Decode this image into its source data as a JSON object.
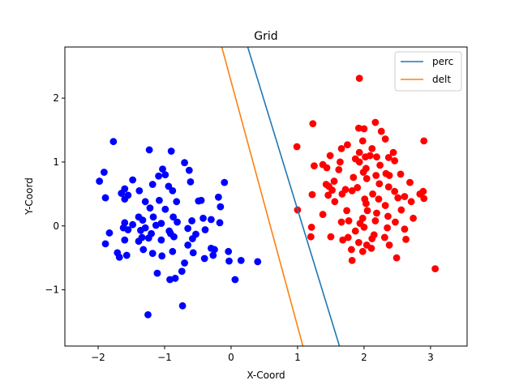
{
  "chart_data": {
    "type": "scatter",
    "title": "Grid",
    "xlabel": "X-Coord",
    "ylabel": "Y-Coord",
    "xlim": [
      -2.5,
      3.55
    ],
    "ylim": [
      -1.88,
      2.8
    ],
    "xticks": [
      -2,
      -1,
      0,
      1,
      2,
      3
    ],
    "yticks": [
      -1,
      0,
      1,
      2
    ],
    "legend_position": "top-right",
    "grid": false,
    "series": [
      {
        "kind": "points",
        "color": "#0000ff",
        "points": [
          [
            -1.77,
            1.32
          ],
          [
            -1.23,
            1.19
          ],
          [
            -0.9,
            1.17
          ],
          [
            -1.03,
            0.89
          ],
          [
            -0.7,
            0.99
          ],
          [
            -0.99,
            0.8
          ],
          [
            -0.63,
            0.87
          ],
          [
            -1.91,
            0.84
          ],
          [
            -1.48,
            0.72
          ],
          [
            -1.98,
            0.7
          ],
          [
            -1.09,
            0.78
          ],
          [
            -1.18,
            0.65
          ],
          [
            -0.94,
            0.62
          ],
          [
            -0.61,
            0.69
          ],
          [
            -0.1,
            0.68
          ],
          [
            -1.6,
            0.58
          ],
          [
            -1.38,
            0.55
          ],
          [
            -0.88,
            0.55
          ],
          [
            -0.19,
            0.45
          ],
          [
            -1.65,
            0.51
          ],
          [
            -1.55,
            0.48
          ],
          [
            -1.08,
            0.4
          ],
          [
            -1.29,
            0.38
          ],
          [
            -0.49,
            0.39
          ],
          [
            -1.6,
            0.42
          ],
          [
            -0.45,
            0.4
          ],
          [
            -0.82,
            0.38
          ],
          [
            -1.89,
            0.44
          ],
          [
            -1.22,
            0.28
          ],
          [
            -0.16,
            0.3
          ],
          [
            -0.99,
            0.26
          ],
          [
            -1.39,
            0.14
          ],
          [
            -1.17,
            0.14
          ],
          [
            -0.87,
            0.14
          ],
          [
            -0.42,
            0.12
          ],
          [
            -1.33,
            0.09
          ],
          [
            -0.59,
            0.08
          ],
          [
            -0.3,
            0.1
          ],
          [
            -1.6,
            0.05
          ],
          [
            -1.48,
            0.02
          ],
          [
            -1.05,
            0.04
          ],
          [
            -0.81,
            0.06
          ],
          [
            -1.62,
            -0.03
          ],
          [
            -1.29,
            -0.03
          ],
          [
            -1.13,
            0.01
          ],
          [
            -0.17,
            0.05
          ],
          [
            -1.55,
            -0.06
          ],
          [
            -1.36,
            -0.07
          ],
          [
            -0.93,
            -0.08
          ],
          [
            -0.65,
            -0.04
          ],
          [
            -0.39,
            -0.06
          ],
          [
            -1.83,
            -0.11
          ],
          [
            -1.2,
            -0.12
          ],
          [
            -0.91,
            -0.12
          ],
          [
            -0.53,
            -0.13
          ],
          [
            -1.34,
            -0.18
          ],
          [
            -1.24,
            -0.19
          ],
          [
            -1.05,
            -0.22
          ],
          [
            -0.86,
            -0.17
          ],
          [
            -0.58,
            -0.2
          ],
          [
            -1.6,
            -0.22
          ],
          [
            -1.89,
            -0.28
          ],
          [
            -1.39,
            -0.24
          ],
          [
            -0.65,
            -0.3
          ],
          [
            -0.3,
            -0.35
          ],
          [
            -1.32,
            -0.37
          ],
          [
            -0.25,
            -0.37
          ],
          [
            -1.71,
            -0.42
          ],
          [
            -1.57,
            -0.46
          ],
          [
            -1.18,
            -0.43
          ],
          [
            -0.88,
            -0.4
          ],
          [
            -0.57,
            -0.42
          ],
          [
            -0.27,
            -0.46
          ],
          [
            -0.04,
            -0.4
          ],
          [
            -1.68,
            -0.49
          ],
          [
            -1.04,
            -0.47
          ],
          [
            -0.4,
            -0.51
          ],
          [
            0.15,
            -0.54
          ],
          [
            0.4,
            -0.56
          ],
          [
            -0.7,
            -0.58
          ],
          [
            -0.03,
            -0.55
          ],
          [
            -1.11,
            -0.74
          ],
          [
            -0.74,
            -0.71
          ],
          [
            -0.92,
            -0.84
          ],
          [
            -0.84,
            -0.82
          ],
          [
            0.06,
            -0.84
          ],
          [
            -0.73,
            -1.25
          ],
          [
            -1.25,
            -1.39
          ]
        ]
      },
      {
        "kind": "points",
        "color": "#ff0000",
        "points": [
          [
            1.93,
            2.31
          ],
          [
            1.23,
            1.6
          ],
          [
            2.17,
            1.62
          ],
          [
            1.92,
            1.53
          ],
          [
            2.0,
            1.52
          ],
          [
            2.26,
            1.48
          ],
          [
            2.32,
            1.36
          ],
          [
            1.98,
            1.33
          ],
          [
            2.9,
            1.33
          ],
          [
            1.75,
            1.27
          ],
          [
            0.99,
            1.24
          ],
          [
            1.66,
            1.21
          ],
          [
            2.12,
            1.21
          ],
          [
            1.93,
            1.15
          ],
          [
            2.44,
            1.15
          ],
          [
            1.49,
            1.1
          ],
          [
            2.02,
            1.08
          ],
          [
            2.09,
            1.1
          ],
          [
            1.87,
            1.05
          ],
          [
            2.19,
            1.08
          ],
          [
            2.37,
            1.07
          ],
          [
            2.46,
            1.02
          ],
          [
            1.64,
            1.0
          ],
          [
            1.93,
            1.0
          ],
          [
            1.38,
            0.96
          ],
          [
            1.25,
            0.94
          ],
          [
            1.44,
            0.91
          ],
          [
            2.24,
            0.95
          ],
          [
            2.03,
            0.9
          ],
          [
            1.62,
            0.88
          ],
          [
            1.99,
            0.84
          ],
          [
            2.33,
            0.82
          ],
          [
            1.84,
            0.76
          ],
          [
            2.04,
            0.74
          ],
          [
            2.18,
            0.79
          ],
          [
            2.38,
            0.79
          ],
          [
            2.55,
            0.81
          ],
          [
            1.43,
            0.65
          ],
          [
            1.55,
            0.7
          ],
          [
            2.23,
            0.66
          ],
          [
            2.69,
            0.68
          ],
          [
            1.47,
            0.62
          ],
          [
            1.9,
            0.6
          ],
          [
            2.37,
            0.61
          ],
          [
            1.52,
            0.56
          ],
          [
            1.72,
            0.57
          ],
          [
            1.82,
            0.55
          ],
          [
            2.46,
            0.54
          ],
          [
            2.89,
            0.54
          ],
          [
            1.22,
            0.49
          ],
          [
            1.46,
            0.48
          ],
          [
            1.67,
            0.5
          ],
          [
            2.13,
            0.5
          ],
          [
            2.84,
            0.5
          ],
          [
            2.61,
            0.46
          ],
          [
            2.9,
            0.43
          ],
          [
            2.01,
            0.42
          ],
          [
            2.22,
            0.42
          ],
          [
            2.51,
            0.44
          ],
          [
            1.56,
            0.38
          ],
          [
            2.03,
            0.35
          ],
          [
            2.71,
            0.38
          ],
          [
            2.32,
            0.32
          ],
          [
            1.0,
            0.25
          ],
          [
            1.74,
            0.24
          ],
          [
            2.05,
            0.24
          ],
          [
            2.56,
            0.25
          ],
          [
            2.19,
            0.2
          ],
          [
            1.38,
            0.18
          ],
          [
            2.36,
            0.15
          ],
          [
            1.98,
            0.12
          ],
          [
            2.74,
            0.12
          ],
          [
            1.77,
            0.08
          ],
          [
            1.94,
            0.04
          ],
          [
            1.66,
            0.06
          ],
          [
            2.17,
            0.08
          ],
          [
            2.47,
            0.06
          ],
          [
            1.21,
            -0.02
          ],
          [
            2.0,
            -0.02
          ],
          [
            2.35,
            -0.03
          ],
          [
            1.87,
            -0.08
          ],
          [
            2.61,
            -0.05
          ],
          [
            2.15,
            -0.14
          ],
          [
            1.5,
            -0.17
          ],
          [
            1.76,
            -0.18
          ],
          [
            2.12,
            -0.2
          ],
          [
            2.31,
            -0.18
          ],
          [
            1.2,
            -0.17
          ],
          [
            1.68,
            -0.22
          ],
          [
            2.63,
            -0.21
          ],
          [
            1.92,
            -0.26
          ],
          [
            2.04,
            -0.3
          ],
          [
            1.81,
            -0.37
          ],
          [
            2.11,
            -0.35
          ],
          [
            2.38,
            -0.3
          ],
          [
            1.98,
            -0.4
          ],
          [
            2.49,
            -0.5
          ],
          [
            1.82,
            -0.54
          ],
          [
            3.07,
            -0.67
          ]
        ]
      },
      {
        "kind": "line",
        "name": "perc",
        "color": "#1f77b4",
        "points": [
          [
            0.25,
            2.8
          ],
          [
            1.63,
            -1.88
          ]
        ]
      },
      {
        "kind": "line",
        "name": "delt",
        "color": "#ff7f0e",
        "points": [
          [
            -0.14,
            2.8
          ],
          [
            1.08,
            -1.88
          ]
        ]
      }
    ]
  }
}
